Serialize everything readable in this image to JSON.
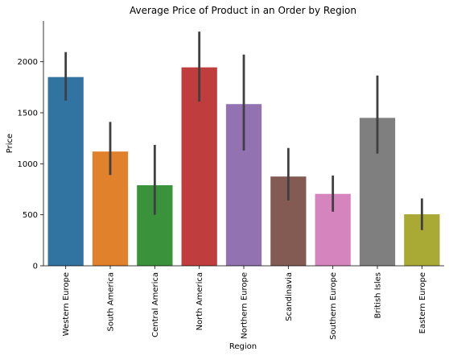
{
  "chart_data": {
    "type": "bar",
    "title": "Average Price of Product in an Order by Region",
    "xlabel": "Region",
    "ylabel": "Price",
    "ylim": [
      0,
      2400
    ],
    "yticks": [
      0,
      500,
      1000,
      1500,
      2000
    ],
    "grid": false,
    "categories": [
      "Western Europe",
      "South America",
      "Central America",
      "North America",
      "Northern Europe",
      "Scandinavia",
      "Southern Europe",
      "British Isles",
      "Eastern Europe"
    ],
    "values": [
      1850,
      1120,
      790,
      1945,
      1585,
      875,
      705,
      1450,
      505
    ],
    "error_low": [
      1620,
      890,
      500,
      1610,
      1130,
      640,
      530,
      1100,
      350
    ],
    "error_high": [
      2095,
      1410,
      1185,
      2295,
      2070,
      1155,
      885,
      1865,
      660
    ],
    "colors": [
      "#3274a1",
      "#e1812c",
      "#3a923a",
      "#c03d3e",
      "#9372b2",
      "#845b53",
      "#d684bd",
      "#7f7f7f",
      "#a9aa35"
    ],
    "errorbar_color": "#3f3f3f"
  }
}
